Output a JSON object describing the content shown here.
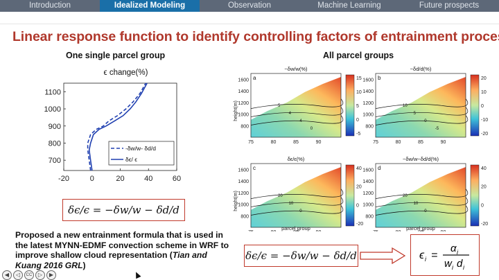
{
  "nav": {
    "tabs": [
      {
        "label": "Introduction",
        "active": false
      },
      {
        "label": "Idealized Modeling",
        "active": true
      },
      {
        "label": "Observation",
        "active": false
      },
      {
        "label": "Machine Learning",
        "active": false
      },
      {
        "label": "Future prospects",
        "active": false
      }
    ]
  },
  "slide": {
    "title": "Linear response function to identify controlling factors of entrainment process",
    "left_subtitle": "One single parcel group",
    "right_subtitle": "All parcel groups",
    "left_equation": "δϵ/ϵ = −δw/w − δd/d",
    "right_equation": "δϵ/ϵ = −δw/w − δd/d",
    "ratio_equation": {
      "lhs": "ϵ",
      "lhs_sub": "i",
      "num": "α",
      "num_sub": "i",
      "den_w": "w",
      "den_w_sub": "i",
      "den_d": "d",
      "den_d_sub": "i"
    },
    "bottom_text_plain": "Proposed a new entrainment formula that is used in the latest MYNN-EDMF convection scheme in WRF to improve shallow cloud representation (",
    "bottom_text_cite": "Tian and Kuang 2016 GRL",
    "bottom_text_end": ")"
  },
  "controls": {
    "icons": [
      "back-icon",
      "prev-icon",
      "captions-icon",
      "next-icon",
      "forward-icon"
    ],
    "cc_label": "CC"
  },
  "chart_data": [
    {
      "type": "line",
      "title": "ϵ change(%)",
      "xlabel": "",
      "ylabel": "",
      "xlim": [
        -20,
        60
      ],
      "ylim": [
        640,
        1150
      ],
      "xticks": [
        -20,
        0,
        20,
        40,
        60
      ],
      "yticks": [
        700,
        800,
        900,
        1000,
        1100
      ],
      "legend": "bottom-right",
      "series": [
        {
          "name": "-δw/w- δd/d",
          "style": "dashed",
          "color": "#1f3fb0",
          "x": [
            -1,
            -2,
            -3,
            -3,
            -1,
            3,
            8,
            12,
            18,
            24,
            29,
            34,
            38
          ],
          "y": [
            640,
            700,
            760,
            800,
            850,
            880,
            900,
            930,
            960,
            1000,
            1040,
            1090,
            1150
          ]
        },
        {
          "name": "δϵ/ ϵ",
          "style": "solid",
          "color": "#1f3fb0",
          "x": [
            0,
            -1,
            -2,
            -1,
            1,
            5,
            10,
            16,
            22,
            27,
            31,
            35,
            39
          ],
          "y": [
            640,
            700,
            760,
            800,
            850,
            880,
            900,
            930,
            960,
            1000,
            1040,
            1090,
            1150
          ]
        }
      ]
    },
    {
      "type": "heatmap",
      "panels": [
        {
          "letter": "a",
          "title": "−δw/w(%)",
          "colorbar_ticks": [
            15,
            10,
            5,
            0,
            -5
          ],
          "contour_labels": [
            "5",
            "4",
            "4",
            "0"
          ]
        },
        {
          "letter": "b",
          "title": "−δd/d(%)",
          "colorbar_ticks": [
            20,
            10,
            0,
            -10,
            -20
          ],
          "contour_labels": [
            "10",
            "5",
            "0",
            "-5"
          ]
        },
        {
          "letter": "c",
          "title": "δε/ε(%)",
          "colorbar_ticks": [
            40,
            20,
            0,
            -20
          ],
          "contour_labels": [
            "20",
            "10",
            "0"
          ]
        },
        {
          "letter": "d",
          "title": "−δw/w−δd/d(%)",
          "colorbar_ticks": [
            40,
            20,
            0,
            -20
          ],
          "contour_labels": [
            "20",
            "10",
            "0"
          ]
        }
      ],
      "xlabel": "parcel group",
      "ylabel": "height(m)",
      "xticks": [
        75,
        80,
        85,
        90
      ],
      "yticks": [
        800,
        1000,
        1200,
        1400,
        1600
      ],
      "xlim": [
        75,
        95
      ],
      "ylim": [
        600,
        1700
      ]
    }
  ],
  "colors": {
    "title": "#b0382c",
    "nav_bg": "#5d6878",
    "nav_active": "#1a6fa8",
    "box_border": "#c0392b",
    "line": "#1f3fb0"
  }
}
